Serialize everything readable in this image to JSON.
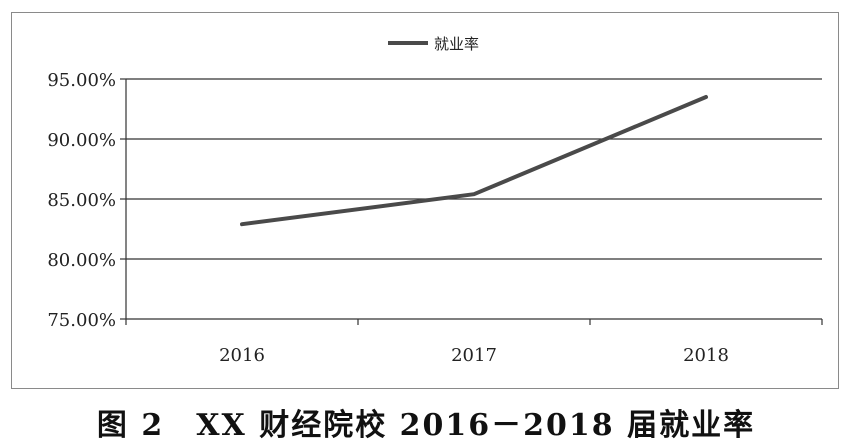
{
  "caption": "图 2　XX 财经院校 2016－2018 届就业率",
  "chart_data": {
    "type": "line",
    "title": "",
    "xlabel": "",
    "ylabel": "",
    "categories": [
      "2016",
      "2017",
      "2018"
    ],
    "series": [
      {
        "name": "就业率",
        "values": [
          82.9,
          85.4,
          93.5
        ],
        "color": "#4a4a4a"
      }
    ],
    "y_ticks": [
      75,
      80,
      85,
      90,
      95
    ],
    "y_tick_labels": [
      "75.00%",
      "80.00%",
      "85.00%",
      "90.00%",
      "95.00%"
    ],
    "ylim": [
      75,
      95
    ],
    "grid": true,
    "legend": "top-center"
  }
}
